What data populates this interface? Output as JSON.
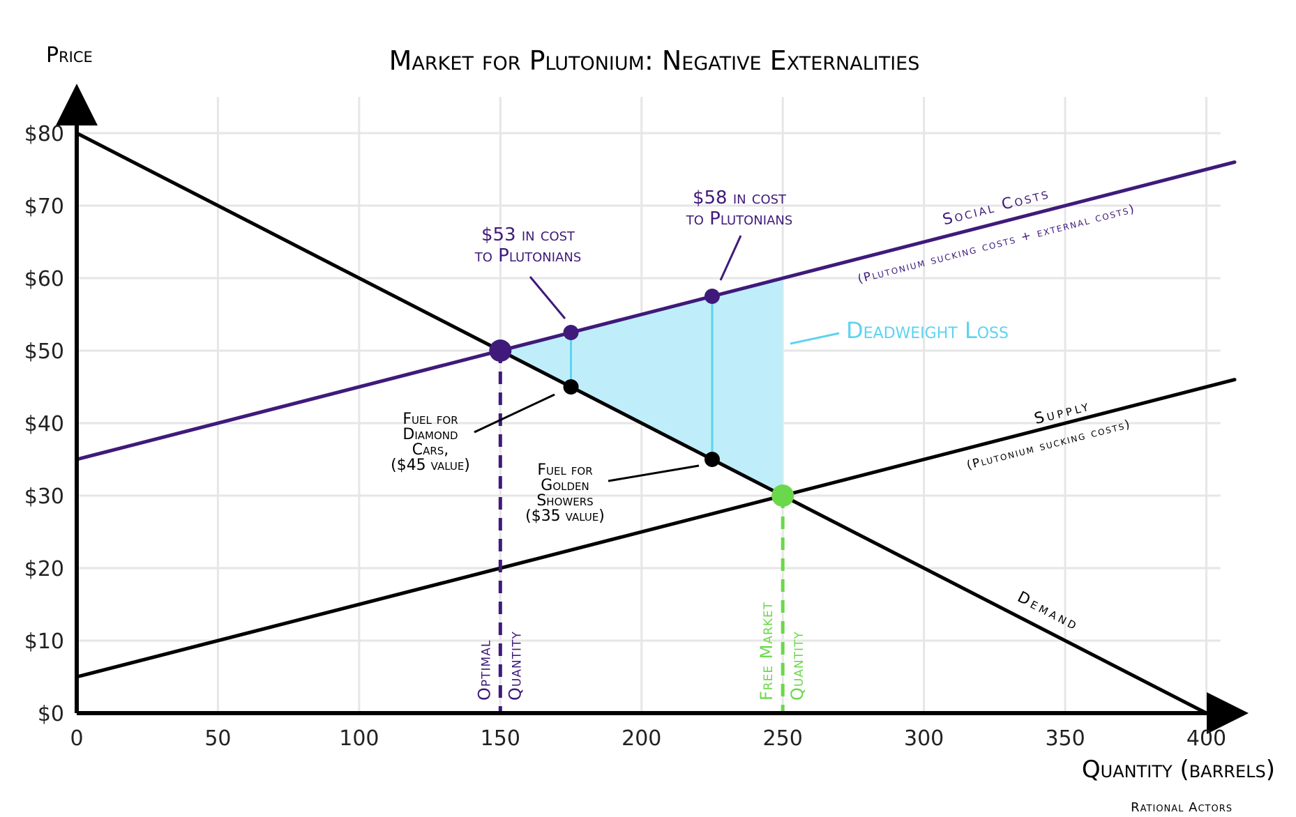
{
  "chart_data": {
    "type": "line",
    "title": "Market for Plutonium: Negative Externalities",
    "xlabel": "Quantity (barrels)",
    "ylabel": "Price",
    "xlim": [
      0,
      410
    ],
    "ylim": [
      0,
      85
    ],
    "x_ticks": [
      {
        "value": 0,
        "label": "0"
      },
      {
        "value": 50,
        "label": "50"
      },
      {
        "value": 100,
        "label": "100"
      },
      {
        "value": 150,
        "label": "150"
      },
      {
        "value": 200,
        "label": "200"
      },
      {
        "value": 250,
        "label": "250"
      },
      {
        "value": 300,
        "label": "300"
      },
      {
        "value": 350,
        "label": "350"
      },
      {
        "value": 400,
        "label": "400"
      }
    ],
    "y_ticks": [
      {
        "value": 0,
        "label": "$0"
      },
      {
        "value": 10,
        "label": "$10"
      },
      {
        "value": 20,
        "label": "$20"
      },
      {
        "value": 30,
        "label": "$30"
      },
      {
        "value": 40,
        "label": "$40"
      },
      {
        "value": 50,
        "label": "$50"
      },
      {
        "value": 60,
        "label": "$60"
      },
      {
        "value": 70,
        "label": "$70"
      },
      {
        "value": 80,
        "label": "$80"
      }
    ],
    "grid": true,
    "series": [
      {
        "key": "social",
        "name": "Social Costs",
        "sublabel": "(Plutonium sucking costs + external costs)",
        "color": "#3f1a7a",
        "x": [
          0,
          410
        ],
        "y": [
          35,
          76
        ]
      },
      {
        "key": "demand",
        "name": "Demand",
        "color": "#000000",
        "x": [
          0,
          400
        ],
        "y": [
          80,
          0
        ]
      },
      {
        "key": "supply",
        "name": "Supply",
        "sublabel": "(Plutonium sucking costs)",
        "color": "#000000",
        "x": [
          0,
          410
        ],
        "y": [
          5,
          46
        ]
      }
    ],
    "deadweight_loss": {
      "label": "Deadweight Loss",
      "color": "#bfeefa",
      "line_color": "#5cd3f0",
      "polygon": [
        [
          150,
          50
        ],
        [
          250,
          60
        ],
        [
          250,
          30
        ]
      ]
    },
    "points": [
      {
        "key": "opt",
        "x": 150,
        "y": 50,
        "color": "#3f1a7a",
        "size": "large"
      },
      {
        "key": "free",
        "x": 250,
        "y": 30,
        "color": "#6ad84a",
        "size": "large"
      },
      {
        "key": "s175",
        "x": 175,
        "y": 52.5,
        "color": "#3f1a7a",
        "size": "small"
      },
      {
        "key": "s225",
        "x": 225,
        "y": 57.5,
        "color": "#3f1a7a",
        "size": "small"
      },
      {
        "key": "d175",
        "x": 175,
        "y": 45,
        "color": "#000000",
        "size": "small"
      },
      {
        "key": "d225",
        "x": 225,
        "y": 35,
        "color": "#000000",
        "size": "small"
      }
    ],
    "quantity_markers": [
      {
        "key": "optimal",
        "x": 150,
        "top": 50,
        "color": "#3f1a7a",
        "label_lines": [
          "Optimal",
          "Quantity"
        ]
      },
      {
        "key": "free",
        "x": 250,
        "top": 30,
        "color": "#6ad84a",
        "label_lines": [
          "Free Market",
          "Quantity"
        ]
      }
    ],
    "annotations": [
      {
        "key": "cost53",
        "lines": [
          "$53 in cost",
          "to Plutonians"
        ],
        "color": "#3f1a7a"
      },
      {
        "key": "cost58",
        "lines": [
          "$58 in cost",
          "to Plutonians"
        ],
        "color": "#3f1a7a"
      },
      {
        "key": "fuel45",
        "lines": [
          "Fuel for",
          "Diamond",
          "Cars,",
          "($45 value)"
        ],
        "color": "#000000"
      },
      {
        "key": "fuel35",
        "lines": [
          "Fuel for",
          "Golden",
          "Showers",
          "($35 value)"
        ],
        "color": "#000000"
      }
    ],
    "credit": "Rational Actors"
  }
}
